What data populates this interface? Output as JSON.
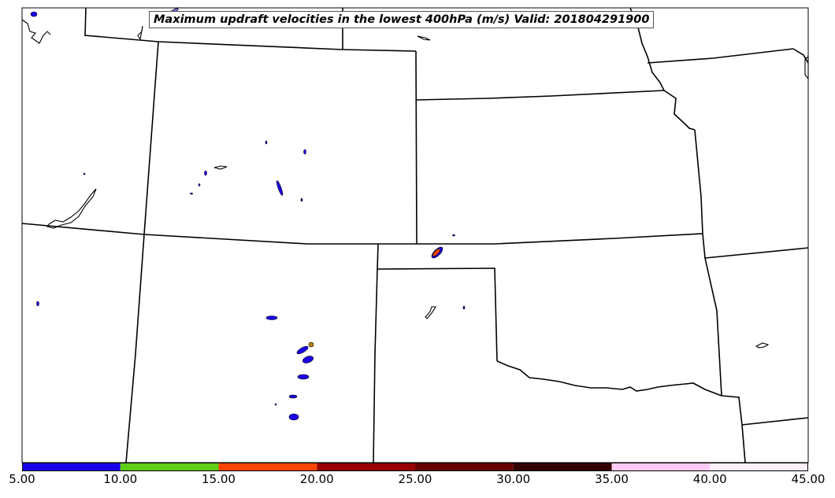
{
  "title": "Maximum updraft velocities in the lowest 400hPa (m/s) Valid: 201804291900",
  "colorbar": {
    "min": 5.0,
    "max": 45.0,
    "colors": [
      "#1a00e6",
      "#5fcd14",
      "#ff4500",
      "#990000",
      "#660000",
      "#330000",
      "#ffcbf5",
      "#ffeefc"
    ],
    "ticks": [
      "5.00",
      "10.00",
      "15.00",
      "20.00",
      "25.00",
      "30.00",
      "35.00",
      "40.00",
      "45.00"
    ],
    "tick_values": [
      5,
      10,
      15,
      20,
      25,
      30,
      35,
      40,
      45
    ]
  },
  "colors": {
    "border": "#000000",
    "updraft_low": "#1a00e6",
    "updraft_mid": "#5fcd14",
    "updraft_high": "#ff4500",
    "updraft_tan": "#b8860b"
  }
}
